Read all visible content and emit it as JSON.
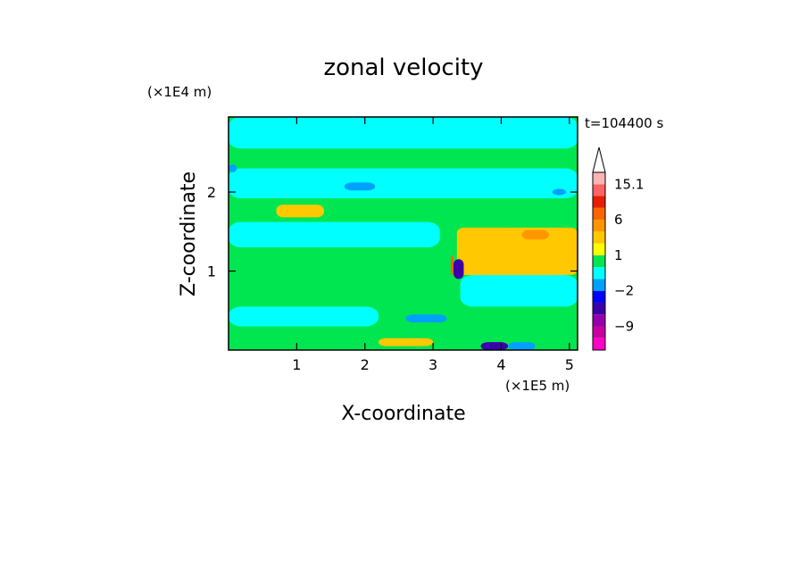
{
  "chart_data": {
    "type": "heatmap",
    "title": "zonal velocity",
    "xlabel": "X-coordinate",
    "ylabel": "Z-coordinate",
    "x_unit": "(×1E5 m)",
    "y_unit": "(×1E4 m)",
    "time_label": "t=104400 s",
    "xlim": [
      0,
      5.12
    ],
    "ylim": [
      0,
      2.95
    ],
    "x_ticks": [
      1,
      2,
      3,
      4,
      5
    ],
    "y_ticks": [
      1,
      2
    ],
    "x_tick_labels": [
      "1",
      "2",
      "3",
      "4",
      "5"
    ],
    "y_tick_labels": [
      "1",
      "2"
    ],
    "colorbar": {
      "levels": [
        -15.1,
        -12,
        -9,
        -6,
        -4,
        -2,
        -1,
        0,
        1,
        2,
        4,
        6,
        9,
        12,
        15.1
      ],
      "colors": [
        "#ff00c8",
        "#c800a0",
        "#9600aa",
        "#3c00aa",
        "#0000ff",
        "#00a0ff",
        "#00ffff",
        "#00e650",
        "#ffff00",
        "#ffc800",
        "#ff9600",
        "#ff6400",
        "#e61e00",
        "#ff6464",
        "#ffb4b4"
      ],
      "tick_labels": [
        "15.1",
        "6",
        "1",
        "−2",
        "−9"
      ],
      "tick_values": [
        15.1,
        6,
        1,
        -2,
        -9
      ],
      "extend_top": true
    },
    "background_value": 0.5,
    "features": [
      {
        "kind": "band",
        "value": -0.5,
        "x": [
          0,
          5.12
        ],
        "z": [
          2.55,
          2.95
        ]
      },
      {
        "kind": "band",
        "value": -0.5,
        "x": [
          0,
          5.12
        ],
        "z": [
          1.92,
          2.3
        ]
      },
      {
        "kind": "band",
        "value": -0.5,
        "x": [
          0,
          3.1
        ],
        "z": [
          1.3,
          1.62
        ]
      },
      {
        "kind": "band",
        "value": -0.5,
        "x": [
          0,
          2.2
        ],
        "z": [
          0.3,
          0.55
        ]
      },
      {
        "kind": "band",
        "value": -0.5,
        "x": [
          3.4,
          5.12
        ],
        "z": [
          0.55,
          0.95
        ]
      },
      {
        "kind": "blob",
        "value": -1.5,
        "x": [
          1.7,
          2.15
        ],
        "z": [
          2.02,
          2.12
        ]
      },
      {
        "kind": "blob",
        "value": -1.5,
        "x": [
          0,
          0.12
        ],
        "z": [
          2.25,
          2.35
        ]
      },
      {
        "kind": "blob",
        "value": -1.5,
        "x": [
          4.75,
          4.95
        ],
        "z": [
          1.96,
          2.04
        ]
      },
      {
        "kind": "blob",
        "value": 3,
        "x": [
          3.35,
          5.12
        ],
        "z": [
          0.95,
          1.55
        ]
      },
      {
        "kind": "blob",
        "value": 3,
        "x": [
          0.7,
          1.4
        ],
        "z": [
          1.68,
          1.84
        ]
      },
      {
        "kind": "blob",
        "value": 5,
        "x": [
          4.3,
          4.7
        ],
        "z": [
          1.4,
          1.52
        ]
      },
      {
        "kind": "blob",
        "value": -1.5,
        "x": [
          2.6,
          3.2
        ],
        "z": [
          0.35,
          0.45
        ]
      },
      {
        "kind": "blob",
        "value": 3,
        "x": [
          2.2,
          3.0
        ],
        "z": [
          0.05,
          0.15
        ]
      },
      {
        "kind": "blob",
        "value": -5,
        "x": [
          3.3,
          3.45
        ],
        "z": [
          0.9,
          1.15
        ]
      },
      {
        "kind": "blob",
        "value": -5,
        "x": [
          3.7,
          4.1
        ],
        "z": [
          0.0,
          0.1
        ]
      },
      {
        "kind": "blob",
        "value": -1.5,
        "x": [
          4.1,
          4.5
        ],
        "z": [
          0.0,
          0.1
        ]
      },
      {
        "kind": "blob",
        "value": 7,
        "x": [
          3.26,
          3.3
        ],
        "z": [
          0.95,
          1.2
        ]
      }
    ]
  }
}
